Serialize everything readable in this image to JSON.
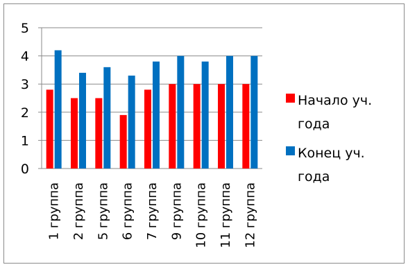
{
  "chart_data": {
    "type": "bar",
    "categories": [
      "1 группа",
      "2 группа",
      "5 группа",
      "6 группа",
      "7 группа",
      "9 группа",
      "10 группа",
      "11 группа",
      "12 группа"
    ],
    "series": [
      {
        "name": "Начало уч. года",
        "color": "#ff0000",
        "values": [
          2.8,
          2.5,
          2.5,
          1.9,
          2.8,
          3.0,
          3.0,
          3.0,
          3.0
        ]
      },
      {
        "name": "Конец уч. года",
        "color": "#0070c0",
        "values": [
          4.2,
          3.4,
          3.6,
          3.3,
          3.8,
          4.0,
          3.8,
          4.0,
          4.0
        ]
      }
    ],
    "ylim": [
      0,
      5
    ],
    "yticks": [
      "0",
      "1",
      "2",
      "3",
      "4",
      "5"
    ],
    "grid": true,
    "legend_position": "right",
    "title": "",
    "xlabel": "",
    "ylabel": ""
  },
  "legend": {
    "items": [
      {
        "label_line1": "Начало уч.",
        "label_line2": "года",
        "color": "#ff0000"
      },
      {
        "label_line1": "Конец уч.",
        "label_line2": "года",
        "color": "#0070c0"
      }
    ]
  }
}
